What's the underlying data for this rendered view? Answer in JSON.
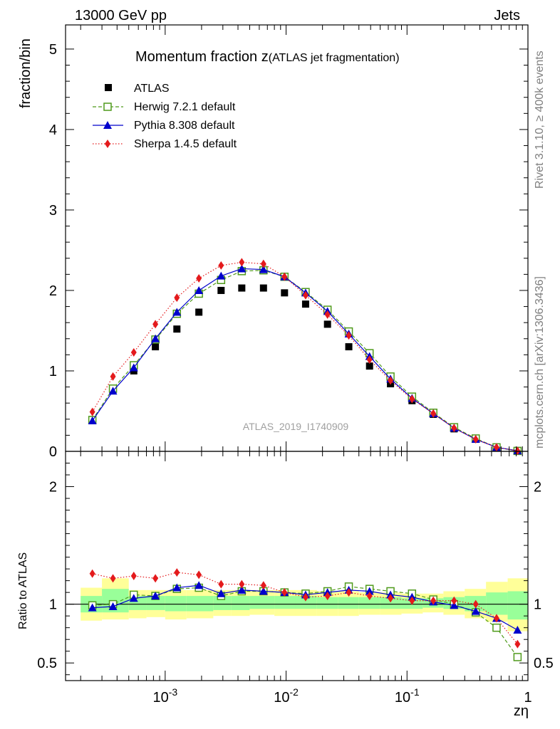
{
  "header": {
    "left": "13000 GeV pp",
    "right": "Jets"
  },
  "side_labels": {
    "rivet": "Rivet 3.1.10, ≥ 400k events",
    "mcplots": "mcplots.cern.ch [arXiv:1306.3436]"
  },
  "chart_data": {
    "type": "line",
    "title_main": "Momentum fraction z",
    "title_sub": "(ATLAS jet fragmentation)",
    "watermark": "ATLAS_2019_I1740909",
    "xlabel": "zη",
    "ylabel": "fraction/bin",
    "ratio_ylabel": "Ratio to ATLAS",
    "xscale": "log",
    "xlim": [
      0.00015,
      1.0
    ],
    "ylim": [
      0,
      5.3
    ],
    "ratio_ylim": [
      0.35,
      2.3
    ],
    "yticks": [
      "0",
      "1",
      "2",
      "3",
      "4",
      "5"
    ],
    "ratio_yticks": [
      "0.5",
      "1",
      "2"
    ],
    "xticks": [
      "10^-3",
      "10^-2",
      "10^-1",
      "1"
    ],
    "x": [
      0.00025,
      0.00037,
      0.00055,
      0.00083,
      0.00125,
      0.0019,
      0.0029,
      0.0043,
      0.0065,
      0.0097,
      0.0145,
      0.022,
      0.033,
      0.049,
      0.073,
      0.11,
      0.165,
      0.245,
      0.37,
      0.55,
      0.82
    ],
    "series": [
      {
        "name": "ATLAS",
        "style": "data",
        "color": "#000000",
        "values": [
          0.39,
          0.77,
          1.0,
          1.3,
          1.52,
          1.73,
          2.0,
          2.03,
          2.03,
          1.97,
          1.83,
          1.58,
          1.3,
          1.06,
          0.84,
          0.63,
          0.46,
          0.28,
          0.15,
          0.05,
          0.01
        ]
      },
      {
        "name": "Herwig 7.2.1 default",
        "style": "dashed",
        "marker": "open-square",
        "color": "#4f9a1b",
        "values": [
          0.39,
          0.78,
          1.07,
          1.39,
          1.71,
          1.96,
          2.13,
          2.24,
          2.25,
          2.17,
          1.98,
          1.76,
          1.49,
          1.22,
          0.93,
          0.68,
          0.48,
          0.3,
          0.16,
          0.05,
          0.005
        ]
      },
      {
        "name": "Pythia 8.308 default",
        "style": "solid",
        "marker": "triangle",
        "color": "#0000cc",
        "values": [
          0.38,
          0.75,
          1.04,
          1.4,
          1.73,
          2.0,
          2.18,
          2.27,
          2.26,
          2.17,
          1.97,
          1.74,
          1.46,
          1.18,
          0.9,
          0.66,
          0.47,
          0.29,
          0.15,
          0.05,
          0.008
        ]
      },
      {
        "name": "Sherpa 1.4.5 default",
        "style": "dotted",
        "marker": "diamond",
        "color": "#e41a1c",
        "values": [
          0.49,
          0.93,
          1.23,
          1.58,
          1.91,
          2.15,
          2.31,
          2.35,
          2.33,
          2.17,
          1.94,
          1.7,
          1.44,
          1.14,
          0.88,
          0.65,
          0.47,
          0.29,
          0.15,
          0.05,
          0.007
        ]
      }
    ],
    "ratio_series": [
      {
        "name": "Herwig 7.2.1 default",
        "values": [
          0.99,
          1.0,
          1.08,
          1.07,
          1.13,
          1.14,
          1.07,
          1.11,
          1.11,
          1.1,
          1.09,
          1.11,
          1.15,
          1.13,
          1.11,
          1.09,
          1.04,
          1.0,
          0.93,
          0.8,
          0.55
        ]
      },
      {
        "name": "Pythia 8.308 default",
        "values": [
          0.97,
          0.98,
          1.05,
          1.07,
          1.14,
          1.16,
          1.09,
          1.12,
          1.11,
          1.1,
          1.08,
          1.1,
          1.12,
          1.11,
          1.08,
          1.06,
          1.02,
          0.99,
          0.94,
          0.88,
          0.78
        ]
      },
      {
        "name": "Sherpa 1.4.5 default",
        "values": [
          1.26,
          1.22,
          1.24,
          1.22,
          1.27,
          1.25,
          1.17,
          1.17,
          1.16,
          1.1,
          1.06,
          1.07,
          1.1,
          1.07,
          1.05,
          1.03,
          1.03,
          1.03,
          1.0,
          0.88,
          0.66
        ]
      }
    ],
    "uncertainty_bands": {
      "edges": [
        0.0002,
        0.0003,
        0.0005,
        0.0007,
        0.001,
        0.0015,
        0.0025,
        0.0035,
        0.005,
        0.008,
        0.012,
        0.018,
        0.027,
        0.04,
        0.06,
        0.09,
        0.135,
        0.2,
        0.3,
        0.45,
        0.68,
        1.0
      ],
      "green_low": [
        0.93,
        0.93,
        0.95,
        0.95,
        0.94,
        0.94,
        0.95,
        0.95,
        0.96,
        0.96,
        0.96,
        0.96,
        0.96,
        0.96,
        0.96,
        0.96,
        0.97,
        0.96,
        0.94,
        0.91,
        0.87
      ],
      "green_high": [
        1.07,
        1.13,
        1.07,
        1.07,
        1.07,
        1.07,
        1.07,
        1.07,
        1.07,
        1.07,
        1.07,
        1.06,
        1.06,
        1.06,
        1.06,
        1.05,
        1.05,
        1.06,
        1.07,
        1.1,
        1.11
      ],
      "yellow_low": [
        0.86,
        0.87,
        0.88,
        0.89,
        0.87,
        0.88,
        0.9,
        0.9,
        0.91,
        0.9,
        0.9,
        0.9,
        0.9,
        0.91,
        0.91,
        0.92,
        0.93,
        0.91,
        0.88,
        0.85,
        0.77
      ],
      "yellow_high": [
        1.14,
        1.22,
        1.12,
        1.12,
        1.12,
        1.12,
        1.12,
        1.12,
        1.12,
        1.12,
        1.12,
        1.11,
        1.11,
        1.1,
        1.1,
        1.09,
        1.09,
        1.11,
        1.13,
        1.19,
        1.22
      ],
      "colors": {
        "inner": "#99ff99",
        "outer": "#ffff99"
      }
    }
  }
}
